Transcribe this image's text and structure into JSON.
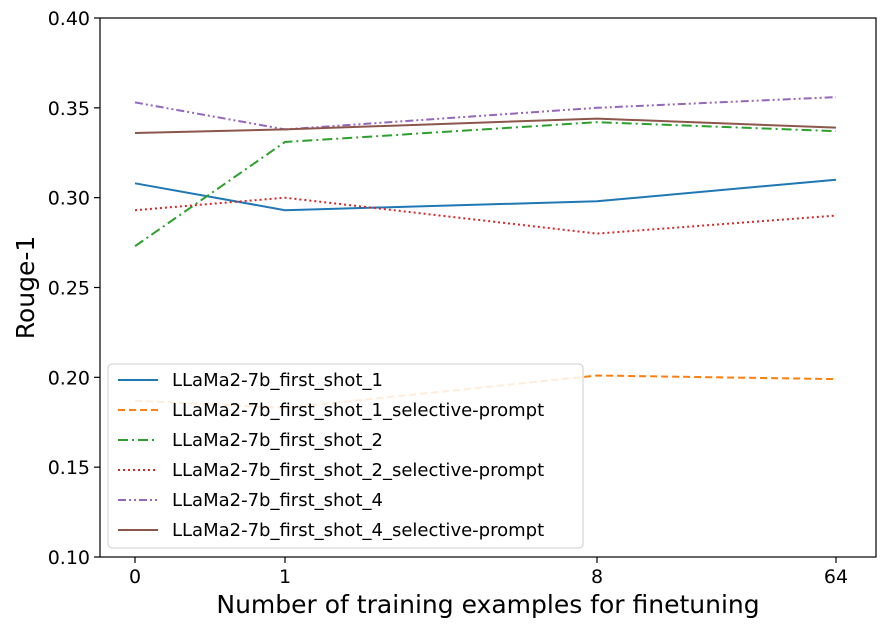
{
  "chart_data": {
    "type": "line",
    "categories": [
      "0",
      "1",
      "8",
      "64"
    ],
    "xlabel": "Number of training examples for finetuning",
    "ylabel": "Rouge-1",
    "ylim": [
      0.1,
      0.4
    ],
    "yticks": [
      "0.10",
      "0.15",
      "0.20",
      "0.25",
      "0.30",
      "0.35",
      "0.40"
    ],
    "grid": false,
    "legend_position": "lower-left",
    "series": [
      {
        "name": "LLaMa2-7b_first_shot_1",
        "values": [
          0.308,
          0.293,
          0.298,
          0.31
        ],
        "color": "#1f77b4",
        "dash": "solid"
      },
      {
        "name": "LLaMa2-7b_first_shot_1_selective-prompt",
        "values": [
          0.187,
          0.183,
          0.201,
          0.199
        ],
        "color": "#ff7f0e",
        "dash": "dashed"
      },
      {
        "name": "LLaMa2-7b_first_shot_2",
        "values": [
          0.273,
          0.331,
          0.342,
          0.337
        ],
        "color": "#2ca02c",
        "dash": "dashdot"
      },
      {
        "name": "LLaMa2-7b_first_shot_2_selective-prompt",
        "values": [
          0.293,
          0.3,
          0.28,
          0.29
        ],
        "color": "#d62728",
        "dash": "dotted"
      },
      {
        "name": "LLaMa2-7b_first_shot_4",
        "values": [
          0.353,
          0.338,
          0.35,
          0.356
        ],
        "color": "#9467bd",
        "dash": "dashdotdot"
      },
      {
        "name": "LLaMa2-7b_first_shot_4_selective-prompt",
        "values": [
          0.336,
          0.338,
          0.344,
          0.339
        ],
        "color": "#8c564b",
        "dash": "solid"
      }
    ]
  }
}
